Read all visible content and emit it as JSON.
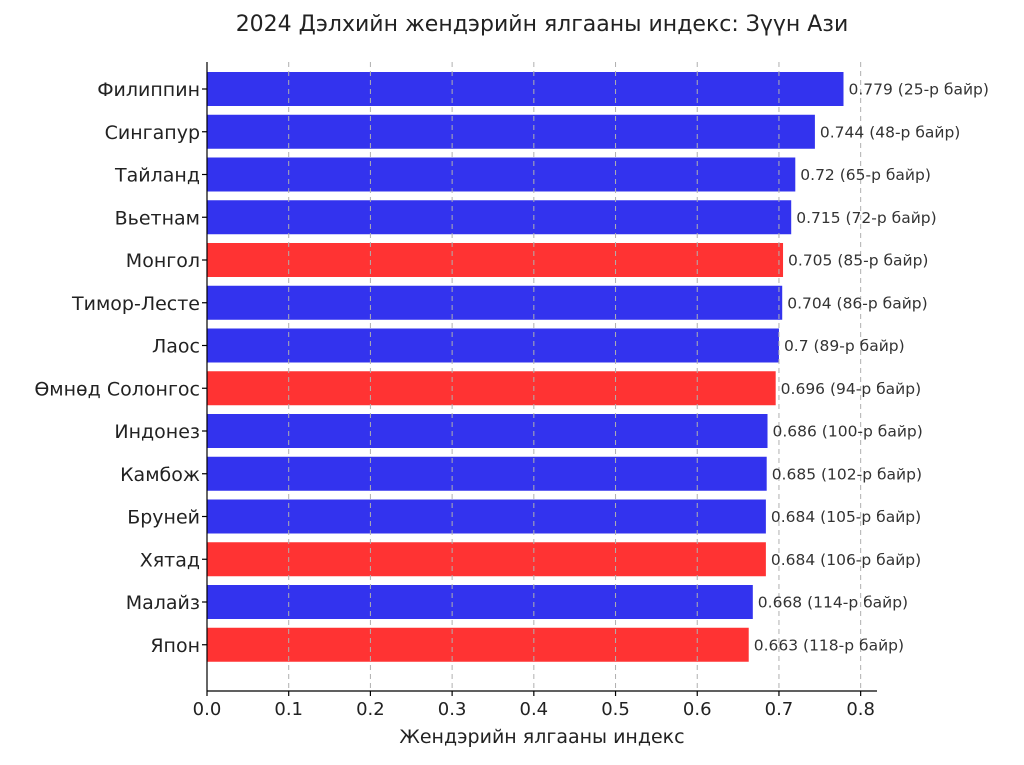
{
  "chart_data": {
    "type": "bar",
    "orientation": "horizontal",
    "title": "2024 Дэлхийн жендэрийн ялгааны индекс: Зүүн Ази",
    "xlabel": "Жендэрийн ялгааны индекс",
    "ylabel": "",
    "xlim": [
      0.0,
      0.82
    ],
    "xticks": [
      0.0,
      0.1,
      0.2,
      0.3,
      0.4,
      0.5,
      0.6,
      0.7,
      0.8
    ],
    "xtick_labels": [
      "0.0",
      "0.1",
      "0.2",
      "0.3",
      "0.4",
      "0.5",
      "0.6",
      "0.7",
      "0.8"
    ],
    "grid": true,
    "colors": {
      "default": "#3333ee",
      "highlight": "#ff3333"
    },
    "bars": [
      {
        "category": "Филиппин",
        "value": 0.779,
        "label": "0.779 (25-р байр)",
        "highlight": false
      },
      {
        "category": "Сингапур",
        "value": 0.744,
        "label": "0.744 (48-р байр)",
        "highlight": false
      },
      {
        "category": "Тайланд",
        "value": 0.72,
        "label": "0.72 (65-р байр)",
        "highlight": false
      },
      {
        "category": "Вьетнам",
        "value": 0.715,
        "label": "0.715 (72-р байр)",
        "highlight": false
      },
      {
        "category": "Монгол",
        "value": 0.705,
        "label": "0.705 (85-р байр)",
        "highlight": true
      },
      {
        "category": "Тимор-Лесте",
        "value": 0.704,
        "label": "0.704 (86-р байр)",
        "highlight": false
      },
      {
        "category": "Лаос",
        "value": 0.7,
        "label": "0.7 (89-р байр)",
        "highlight": false
      },
      {
        "category": "Өмнөд Солонгос",
        "value": 0.696,
        "label": "0.696 (94-р байр)",
        "highlight": true
      },
      {
        "category": "Индонез",
        "value": 0.686,
        "label": "0.686 (100-р байр)",
        "highlight": false
      },
      {
        "category": "Камбож",
        "value": 0.685,
        "label": "0.685 (102-р байр)",
        "highlight": false
      },
      {
        "category": "Бруней",
        "value": 0.684,
        "label": "0.684 (105-р байр)",
        "highlight": false
      },
      {
        "category": "Хятад",
        "value": 0.684,
        "label": "0.684 (106-р байр)",
        "highlight": true
      },
      {
        "category": "Малайз",
        "value": 0.668,
        "label": "0.668 (114-р байр)",
        "highlight": false
      },
      {
        "category": "Япон",
        "value": 0.663,
        "label": "0.663 (118-р байр)",
        "highlight": true
      }
    ]
  }
}
